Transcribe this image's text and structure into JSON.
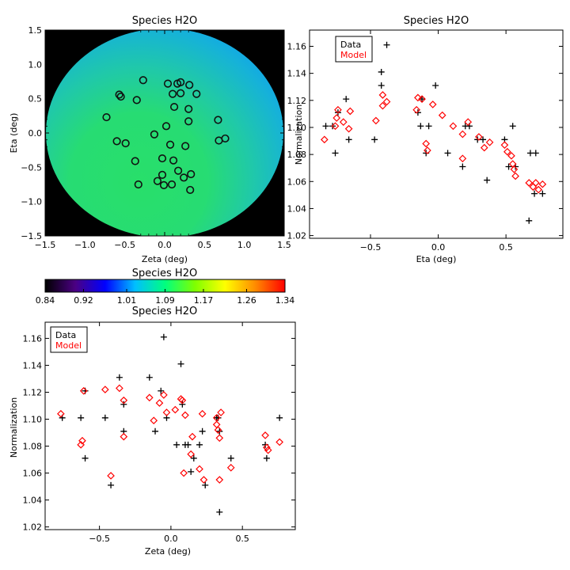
{
  "chart_data": [
    {
      "type": "heatmap",
      "title": "Species H2O",
      "xlabel": "Zeta (deg)",
      "ylabel": "Eta (deg)",
      "xlim": [
        -1.5,
        1.5
      ],
      "ylim": [
        -1.5,
        1.5
      ],
      "xticks": [
        "−1.5",
        "−1.0",
        "−0.5",
        "0.0",
        "0.5",
        "1.0",
        "1.5"
      ],
      "yticks": [
        "−1.5",
        "−1.0",
        "−0.5",
        "0.0",
        "0.5",
        "1.0",
        "1.5"
      ],
      "marker": "circle",
      "points": [
        [
          -0.27,
          0.77
        ],
        [
          0.04,
          0.72
        ],
        [
          0.16,
          0.72
        ],
        [
          0.2,
          0.74
        ],
        [
          0.31,
          0.7
        ],
        [
          -0.57,
          0.56
        ],
        [
          -0.55,
          0.53
        ],
        [
          -0.35,
          0.48
        ],
        [
          0.1,
          0.57
        ],
        [
          0.2,
          0.58
        ],
        [
          0.4,
          0.57
        ],
        [
          0.12,
          0.38
        ],
        [
          0.3,
          0.35
        ],
        [
          -0.73,
          0.23
        ],
        [
          0.3,
          0.17
        ],
        [
          0.67,
          0.19
        ],
        [
          0.02,
          0.1
        ],
        [
          -0.13,
          -0.02
        ],
        [
          -0.6,
          -0.12
        ],
        [
          -0.49,
          -0.15
        ],
        [
          0.68,
          -0.11
        ],
        [
          0.76,
          -0.08
        ],
        [
          0.07,
          -0.17
        ],
        [
          0.26,
          -0.19
        ],
        [
          -0.03,
          -0.37
        ],
        [
          0.11,
          -0.4
        ],
        [
          -0.37,
          -0.41
        ],
        [
          0.17,
          -0.55
        ],
        [
          -0.03,
          -0.61
        ],
        [
          0.33,
          -0.6
        ],
        [
          -0.09,
          -0.7
        ],
        [
          0.24,
          -0.65
        ],
        [
          -0.33,
          -0.75
        ],
        [
          -0.01,
          -0.76
        ],
        [
          0.09,
          -0.75
        ],
        [
          0.32,
          -0.83
        ]
      ]
    },
    {
      "type": "scatter",
      "title": "Species H2O",
      "xlabel": "Eta (deg)",
      "ylabel": "Normalization",
      "xlim": [
        -0.95,
        0.92
      ],
      "ylim": [
        1.018,
        1.172
      ],
      "xticks": [
        "−0.5",
        "0.0",
        "0.5"
      ],
      "yticks": [
        "1.02",
        "1.04",
        "1.06",
        "1.08",
        "1.10",
        "1.12",
        "1.14",
        "1.16"
      ],
      "legend": [
        "Data",
        "Model"
      ],
      "series": [
        {
          "name": "Data",
          "color": "#000000",
          "marker": "plus",
          "points": [
            [
              -0.83,
              1.101
            ],
            [
              -0.78,
              1.101
            ],
            [
              -0.76,
              1.081
            ],
            [
              -0.74,
              1.111
            ],
            [
              -0.68,
              1.121
            ],
            [
              -0.66,
              1.091
            ],
            [
              -0.47,
              1.091
            ],
            [
              -0.42,
              1.141
            ],
            [
              -0.42,
              1.131
            ],
            [
              -0.38,
              1.161
            ],
            [
              -0.15,
              1.111
            ],
            [
              -0.13,
              1.101
            ],
            [
              -0.12,
              1.121
            ],
            [
              -0.09,
              1.081
            ],
            [
              -0.07,
              1.101
            ],
            [
              -0.02,
              1.131
            ],
            [
              0.07,
              1.081
            ],
            [
              0.18,
              1.071
            ],
            [
              0.2,
              1.101
            ],
            [
              0.23,
              1.101
            ],
            [
              0.29,
              1.091
            ],
            [
              0.33,
              1.091
            ],
            [
              0.36,
              1.061
            ],
            [
              0.49,
              1.091
            ],
            [
              0.52,
              1.071
            ],
            [
              0.55,
              1.101
            ],
            [
              0.57,
              1.071
            ],
            [
              0.67,
              1.031
            ],
            [
              0.68,
              1.081
            ],
            [
              0.71,
              1.051
            ],
            [
              0.72,
              1.081
            ],
            [
              0.77,
              1.051
            ]
          ]
        },
        {
          "name": "Model",
          "color": "#ff0000",
          "marker": "diamond",
          "points": [
            [
              -0.84,
              1.091
            ],
            [
              -0.76,
              1.101
            ],
            [
              -0.75,
              1.107
            ],
            [
              -0.74,
              1.113
            ],
            [
              -0.7,
              1.104
            ],
            [
              -0.66,
              1.099
            ],
            [
              -0.65,
              1.112
            ],
            [
              -0.46,
              1.105
            ],
            [
              -0.41,
              1.116
            ],
            [
              -0.41,
              1.124
            ],
            [
              -0.38,
              1.119
            ],
            [
              -0.16,
              1.113
            ],
            [
              -0.15,
              1.122
            ],
            [
              -0.12,
              1.121
            ],
            [
              -0.09,
              1.088
            ],
            [
              -0.08,
              1.083
            ],
            [
              -0.04,
              1.117
            ],
            [
              0.03,
              1.109
            ],
            [
              0.11,
              1.101
            ],
            [
              0.18,
              1.095
            ],
            [
              0.18,
              1.077
            ],
            [
              0.22,
              1.104
            ],
            [
              0.3,
              1.093
            ],
            [
              0.34,
              1.085
            ],
            [
              0.38,
              1.089
            ],
            [
              0.49,
              1.087
            ],
            [
              0.51,
              1.082
            ],
            [
              0.54,
              1.079
            ],
            [
              0.55,
              1.073
            ],
            [
              0.57,
              1.064
            ],
            [
              0.56,
              1.069
            ],
            [
              0.67,
              1.059
            ],
            [
              0.7,
              1.056
            ],
            [
              0.72,
              1.059
            ],
            [
              0.74,
              1.054
            ],
            [
              0.77,
              1.058
            ]
          ]
        }
      ]
    },
    {
      "type": "colorbar",
      "title": "Species H2O",
      "range": [
        0.84,
        1.34
      ],
      "tick_labels": [
        "0.84",
        "0.92",
        "1.01",
        "1.09",
        "1.17",
        "1.26",
        "1.34"
      ],
      "colormap": [
        "#000000",
        "#4b0082",
        "#0000ff",
        "#00bfff",
        "#00ff7f",
        "#7fff00",
        "#ffff00",
        "#ff8c00",
        "#ff0000"
      ]
    },
    {
      "type": "scatter",
      "title": "Species H2O",
      "xlabel": "Zeta (deg)",
      "ylabel": "Normalization",
      "xlim": [
        -0.88,
        0.87
      ],
      "ylim": [
        1.018,
        1.172
      ],
      "xticks": [
        "−0.5",
        "0.0",
        "0.5"
      ],
      "yticks": [
        "1.02",
        "1.04",
        "1.06",
        "1.08",
        "1.10",
        "1.12",
        "1.14",
        "1.16"
      ],
      "legend": [
        "Data",
        "Model"
      ],
      "series": [
        {
          "name": "Data",
          "color": "#000000",
          "marker": "plus",
          "points": [
            [
              -0.76,
              1.101
            ],
            [
              -0.63,
              1.101
            ],
            [
              -0.6,
              1.121
            ],
            [
              -0.6,
              1.071
            ],
            [
              -0.46,
              1.101
            ],
            [
              -0.42,
              1.051
            ],
            [
              -0.36,
              1.131
            ],
            [
              -0.33,
              1.111
            ],
            [
              -0.33,
              1.091
            ],
            [
              -0.15,
              1.131
            ],
            [
              -0.11,
              1.091
            ],
            [
              -0.07,
              1.121
            ],
            [
              -0.05,
              1.161
            ],
            [
              -0.03,
              1.101
            ],
            [
              0.04,
              1.081
            ],
            [
              0.07,
              1.141
            ],
            [
              0.08,
              1.111
            ],
            [
              0.1,
              1.081
            ],
            [
              0.12,
              1.081
            ],
            [
              0.14,
              1.061
            ],
            [
              0.16,
              1.071
            ],
            [
              0.2,
              1.081
            ],
            [
              0.22,
              1.091
            ],
            [
              0.24,
              1.051
            ],
            [
              0.32,
              1.101
            ],
            [
              0.33,
              1.101
            ],
            [
              0.34,
              1.091
            ],
            [
              0.34,
              1.031
            ],
            [
              0.42,
              1.071
            ],
            [
              0.66,
              1.081
            ],
            [
              0.67,
              1.071
            ],
            [
              0.76,
              1.101
            ]
          ]
        },
        {
          "name": "Model",
          "color": "#ff0000",
          "marker": "diamond",
          "points": [
            [
              -0.77,
              1.104
            ],
            [
              -0.61,
              1.121
            ],
            [
              -0.63,
              1.081
            ],
            [
              -0.62,
              1.084
            ],
            [
              -0.46,
              1.122
            ],
            [
              -0.42,
              1.058
            ],
            [
              -0.36,
              1.123
            ],
            [
              -0.33,
              1.114
            ],
            [
              -0.33,
              1.087
            ],
            [
              -0.15,
              1.116
            ],
            [
              -0.12,
              1.099
            ],
            [
              -0.08,
              1.112
            ],
            [
              -0.05,
              1.118
            ],
            [
              -0.03,
              1.105
            ],
            [
              0.03,
              1.107
            ],
            [
              0.07,
              1.115
            ],
            [
              0.08,
              1.114
            ],
            [
              0.09,
              1.06
            ],
            [
              0.1,
              1.103
            ],
            [
              0.14,
              1.074
            ],
            [
              0.15,
              1.087
            ],
            [
              0.2,
              1.063
            ],
            [
              0.22,
              1.104
            ],
            [
              0.23,
              1.055
            ],
            [
              0.32,
              1.101
            ],
            [
              0.32,
              1.096
            ],
            [
              0.33,
              1.092
            ],
            [
              0.34,
              1.086
            ],
            [
              0.35,
              1.105
            ],
            [
              0.34,
              1.055
            ],
            [
              0.42,
              1.064
            ],
            [
              0.66,
              1.088
            ],
            [
              0.67,
              1.079
            ],
            [
              0.68,
              1.077
            ],
            [
              0.76,
              1.083
            ]
          ]
        }
      ]
    }
  ]
}
